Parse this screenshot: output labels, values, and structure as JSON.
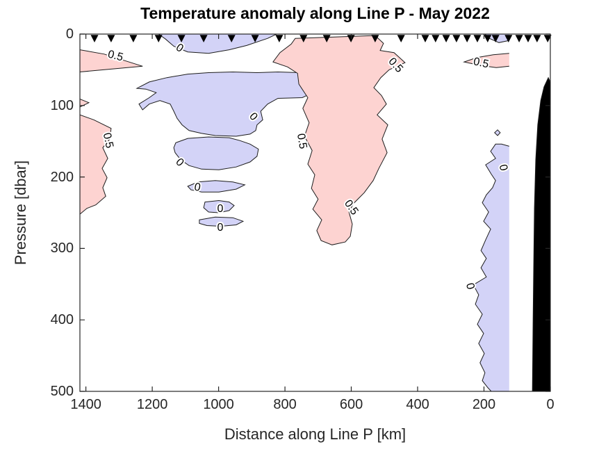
{
  "chart_data": {
    "type": "contour",
    "title": "Temperature anomaly along Line P - May 2022",
    "xlabel": "Distance along Line P [km]",
    "ylabel": "Pressure [dbar]",
    "x_ticks": [
      1400,
      1200,
      1000,
      800,
      600,
      400,
      200,
      0
    ],
    "y_ticks": [
      0,
      100,
      200,
      300,
      400,
      500
    ],
    "xlim_left_km": 1418,
    "xlim_right_km": 0,
    "ylim_top_dbar": 0,
    "ylim_bottom_dbar": 500,
    "x_axis_reversed": true,
    "grid": false,
    "contour_levels": [
      0,
      0.5
    ],
    "colors": {
      "positive_fill": "#fdd3d1",
      "negative_fill": "#d3d3f7",
      "neutral_fill": "#ffffff",
      "bottom_mask": "#000000",
      "contour_line": "#1c1c1c",
      "axis": "#262626",
      "station_marker": "#000000",
      "title_text": "#000000"
    },
    "station_markers_km": [
      1374,
      1324,
      1257,
      1181,
      1112,
      1045,
      961,
      890,
      817,
      744,
      674,
      601,
      528,
      450,
      377,
      346,
      314,
      283,
      251,
      220,
      189,
      165,
      126,
      94,
      67,
      40,
      8
    ],
    "contour_labels": [
      {
        "text": "0.5",
        "km": 1311,
        "dbar": 31,
        "rot": 15
      },
      {
        "text": "0.5",
        "km": 1334,
        "dbar": 149,
        "rot": 78
      },
      {
        "text": "0",
        "km": 1118,
        "dbar": 20,
        "rot": 35
      },
      {
        "text": "0",
        "km": 896,
        "dbar": 116,
        "rot": 48
      },
      {
        "text": "0",
        "km": 1118,
        "dbar": 180,
        "rot": 45
      },
      {
        "text": "0",
        "km": 1064,
        "dbar": 215,
        "rot": 12
      },
      {
        "text": "0",
        "km": 995,
        "dbar": 245,
        "rot": 0
      },
      {
        "text": "0",
        "km": 995,
        "dbar": 271,
        "rot": 0
      },
      {
        "text": "0.5",
        "km": 750,
        "dbar": 150,
        "rot": 80
      },
      {
        "text": "0.5",
        "km": 467,
        "dbar": 44,
        "rot": 48
      },
      {
        "text": "0.5",
        "km": 601,
        "dbar": 243,
        "rot": 55
      },
      {
        "text": "0.5",
        "km": 209,
        "dbar": 41,
        "rot": 12
      },
      {
        "text": "0",
        "km": 143,
        "dbar": 187,
        "rot": 78
      },
      {
        "text": "0",
        "km": 243,
        "dbar": 353,
        "rot": 78
      }
    ],
    "regions": [
      {
        "name": "left-top-positive-wedge",
        "fill": "pos",
        "stroke_n": 5,
        "points": [
          [
            1418,
            22
          ],
          [
            1345,
            28
          ],
          [
            1229,
            45
          ],
          [
            1324,
            49
          ],
          [
            1418,
            53
          ]
        ]
      },
      {
        "name": "left-positive-small-wedge",
        "fill": "pos",
        "stroke_n": 3,
        "points": [
          [
            1418,
            91
          ],
          [
            1391,
            96
          ],
          [
            1418,
            102
          ]
        ]
      },
      {
        "name": "left-middle-positive",
        "fill": "pos",
        "stroke_n": 13,
        "points": [
          [
            1418,
            113
          ],
          [
            1376,
            120
          ],
          [
            1324,
            132
          ],
          [
            1328,
            147
          ],
          [
            1349,
            159
          ],
          [
            1334,
            174
          ],
          [
            1351,
            188
          ],
          [
            1336,
            201
          ],
          [
            1349,
            215
          ],
          [
            1340,
            227
          ],
          [
            1370,
            239
          ],
          [
            1397,
            244
          ],
          [
            1418,
            252
          ]
        ]
      },
      {
        "name": "top-center-negative",
        "fill": "neg",
        "stroke_n": 9,
        "points": [
          [
            1181,
            0
          ],
          [
            1160,
            7
          ],
          [
            1135,
            17
          ],
          [
            1093,
            25
          ],
          [
            1030,
            27
          ],
          [
            968,
            22
          ],
          [
            915,
            16
          ],
          [
            852,
            6
          ],
          [
            825,
            0
          ]
        ]
      },
      {
        "name": "center-big-negative",
        "fill": "neg",
        "points": [
          [
            1246,
            76
          ],
          [
            1209,
            67
          ],
          [
            1156,
            61
          ],
          [
            1093,
            56
          ],
          [
            1030,
            54
          ],
          [
            957,
            53
          ],
          [
            884,
            54
          ],
          [
            821,
            53
          ],
          [
            758,
            54
          ],
          [
            712,
            56
          ],
          [
            702,
            69
          ],
          [
            716,
            82
          ],
          [
            748,
            89
          ],
          [
            821,
            90
          ],
          [
            852,
            98
          ],
          [
            873,
            108
          ],
          [
            867,
            120
          ],
          [
            884,
            127
          ],
          [
            888,
            135
          ],
          [
            905,
            140
          ],
          [
            947,
            143
          ],
          [
            1010,
            142
          ],
          [
            1051,
            139
          ],
          [
            1089,
            135
          ],
          [
            1110,
            127
          ],
          [
            1125,
            118
          ],
          [
            1135,
            108
          ],
          [
            1146,
            98
          ],
          [
            1177,
            93
          ],
          [
            1209,
            98
          ],
          [
            1229,
            106
          ],
          [
            1240,
            98
          ],
          [
            1209,
            89
          ],
          [
            1188,
            82
          ],
          [
            1219,
            77
          ]
        ]
      },
      {
        "name": "center-negative-2",
        "fill": "neg",
        "points": [
          [
            1129,
            152
          ],
          [
            1093,
            146
          ],
          [
            1030,
            144
          ],
          [
            968,
            145
          ],
          [
            936,
            149
          ],
          [
            905,
            154
          ],
          [
            880,
            161
          ],
          [
            884,
            171
          ],
          [
            905,
            179
          ],
          [
            947,
            186
          ],
          [
            999,
            190
          ],
          [
            1051,
            189
          ],
          [
            1089,
            184
          ],
          [
            1114,
            176
          ],
          [
            1131,
            166
          ],
          [
            1135,
            159
          ]
        ]
      },
      {
        "name": "center-negative-sliver",
        "fill": "neg",
        "points": [
          [
            1093,
            213
          ],
          [
            1062,
            207
          ],
          [
            1010,
            205
          ],
          [
            957,
            207
          ],
          [
            921,
            211
          ],
          [
            947,
            217
          ],
          [
            999,
            221
          ],
          [
            1051,
            221
          ],
          [
            1083,
            218
          ]
        ]
      },
      {
        "name": "center-negative-blob-1",
        "fill": "neg",
        "points": [
          [
            1041,
            235
          ],
          [
            999,
            233
          ],
          [
            968,
            235
          ],
          [
            953,
            240
          ],
          [
            968,
            247
          ],
          [
            999,
            250
          ],
          [
            1030,
            249
          ],
          [
            1045,
            243
          ]
        ]
      },
      {
        "name": "center-negative-blob-2",
        "fill": "neg",
        "points": [
          [
            1058,
            260
          ],
          [
            1010,
            256
          ],
          [
            957,
            257
          ],
          [
            926,
            262
          ],
          [
            947,
            267
          ],
          [
            993,
            269
          ],
          [
            1035,
            268
          ],
          [
            1058,
            265
          ]
        ]
      },
      {
        "name": "middle-big-positive",
        "fill": "pos",
        "points": [
          [
            769,
            6
          ],
          [
            528,
            2
          ],
          [
            503,
            13
          ],
          [
            513,
            23
          ],
          [
            471,
            26
          ],
          [
            438,
            40
          ],
          [
            486,
            50
          ],
          [
            511,
            61
          ],
          [
            532,
            75
          ],
          [
            509,
            86
          ],
          [
            494,
            98
          ],
          [
            522,
            113
          ],
          [
            490,
            127
          ],
          [
            507,
            147
          ],
          [
            492,
            166
          ],
          [
            517,
            188
          ],
          [
            534,
            205
          ],
          [
            561,
            222
          ],
          [
            593,
            237
          ],
          [
            607,
            249
          ],
          [
            597,
            266
          ],
          [
            603,
            283
          ],
          [
            618,
            291
          ],
          [
            658,
            295
          ],
          [
            691,
            289
          ],
          [
            704,
            275
          ],
          [
            689,
            260
          ],
          [
            716,
            245
          ],
          [
            700,
            231
          ],
          [
            720,
            216
          ],
          [
            710,
            197
          ],
          [
            731,
            182
          ],
          [
            718,
            163
          ],
          [
            741,
            143
          ],
          [
            727,
            124
          ],
          [
            746,
            104
          ],
          [
            731,
            89
          ],
          [
            758,
            70
          ],
          [
            762,
            55
          ],
          [
            792,
            46
          ],
          [
            836,
            39
          ],
          [
            815,
            26
          ],
          [
            781,
            14
          ]
        ]
      },
      {
        "name": "right-top-negative-sliver",
        "fill": "neg",
        "stroke_n": 4,
        "points": [
          [
            124,
            9
          ],
          [
            155,
            12
          ],
          [
            184,
            6
          ],
          [
            197,
            0
          ],
          [
            124,
            0
          ]
        ]
      },
      {
        "name": "right-positive-sliver",
        "fill": "pos",
        "stroke_n": 7,
        "points": [
          [
            124,
            27
          ],
          [
            172,
            29
          ],
          [
            222,
            33
          ],
          [
            260,
            39
          ],
          [
            209,
            44
          ],
          [
            163,
            47
          ],
          [
            124,
            45
          ]
        ]
      },
      {
        "name": "right-tiny-negative-dot",
        "fill": "neg",
        "points": [
          [
            159,
            134
          ],
          [
            151,
            138
          ],
          [
            159,
            142
          ],
          [
            168,
            138
          ]
        ]
      },
      {
        "name": "right-negative-column",
        "fill": "neg",
        "stroke_n": 32,
        "points": [
          [
            124,
            157
          ],
          [
            147,
            154
          ],
          [
            165,
            154
          ],
          [
            180,
            164
          ],
          [
            165,
            174
          ],
          [
            195,
            183
          ],
          [
            178,
            196
          ],
          [
            165,
            205
          ],
          [
            174,
            215
          ],
          [
            193,
            225
          ],
          [
            205,
            236
          ],
          [
            186,
            249
          ],
          [
            201,
            262
          ],
          [
            180,
            273
          ],
          [
            195,
            288
          ],
          [
            209,
            303
          ],
          [
            193,
            314
          ],
          [
            209,
            327
          ],
          [
            193,
            340
          ],
          [
            232,
            351
          ],
          [
            216,
            365
          ],
          [
            226,
            378
          ],
          [
            205,
            392
          ],
          [
            220,
            406
          ],
          [
            201,
            419
          ],
          [
            216,
            433
          ],
          [
            199,
            447
          ],
          [
            212,
            460
          ],
          [
            197,
            474
          ],
          [
            205,
            485
          ],
          [
            188,
            495
          ],
          [
            178,
            500
          ],
          [
            124,
            500
          ]
        ]
      },
      {
        "name": "coast-bottom-mask",
        "fill": "mask",
        "stroke_n": 10,
        "points": [
          [
            54,
            500
          ],
          [
            52,
            400
          ],
          [
            50,
            322
          ],
          [
            48,
            244
          ],
          [
            44,
            176
          ],
          [
            38,
            127
          ],
          [
            29,
            93
          ],
          [
            19,
            74
          ],
          [
            6,
            61
          ],
          [
            0,
            67
          ],
          [
            0,
            500
          ]
        ]
      }
    ]
  }
}
